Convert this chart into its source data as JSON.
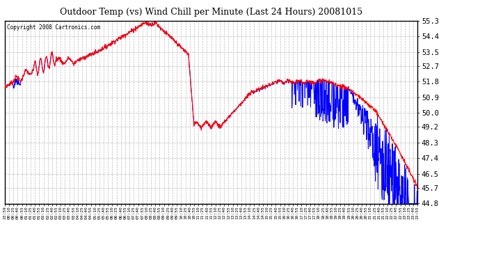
{
  "title": "Outdoor Temp (vs) Wind Chill per Minute (Last 24 Hours) 20081015",
  "copyright": "Copyright 2008 Cartronics.com",
  "ylim": [
    44.8,
    55.3
  ],
  "yticks": [
    44.8,
    45.7,
    46.5,
    47.4,
    48.3,
    49.2,
    50.0,
    50.9,
    51.8,
    52.7,
    53.5,
    54.4,
    55.3
  ],
  "bg_color": "#ffffff",
  "grid_color": "#aaaaaa",
  "temp_color": "#ff0000",
  "wind_color": "#0000ff",
  "n_points": 1440,
  "x_tick_labels": [
    "23:59",
    "00:10",
    "00:25",
    "00:40",
    "00:55",
    "01:10",
    "01:25",
    "01:40",
    "01:55",
    "02:10",
    "02:25",
    "02:40",
    "02:55",
    "03:10",
    "03:25",
    "03:40",
    "03:55",
    "04:10",
    "04:25",
    "04:40",
    "04:55",
    "05:10",
    "05:25",
    "05:40",
    "05:55",
    "06:10",
    "06:25",
    "06:40",
    "06:55",
    "07:10",
    "07:25",
    "07:40",
    "07:55",
    "08:10",
    "08:25",
    "08:40",
    "08:55",
    "09:10",
    "09:25",
    "09:40",
    "09:55",
    "10:10",
    "10:25",
    "10:40",
    "10:55",
    "11:10",
    "11:25",
    "11:40",
    "11:55",
    "12:10",
    "12:25",
    "12:40",
    "12:55",
    "13:10",
    "13:25",
    "13:40",
    "13:55",
    "14:10",
    "14:25",
    "14:40",
    "14:55",
    "15:10",
    "15:25",
    "15:40",
    "15:55",
    "16:10",
    "16:25",
    "16:40",
    "16:55",
    "17:10",
    "17:25",
    "17:40",
    "17:55",
    "18:10",
    "18:25",
    "18:40",
    "18:55",
    "19:10",
    "19:25",
    "19:40",
    "19:55",
    "20:10",
    "20:25",
    "20:40",
    "20:55",
    "21:10",
    "21:25",
    "21:40",
    "21:55",
    "22:10",
    "22:25",
    "22:40",
    "22:55",
    "23:10",
    "23:25",
    "23:40",
    "23:55"
  ]
}
